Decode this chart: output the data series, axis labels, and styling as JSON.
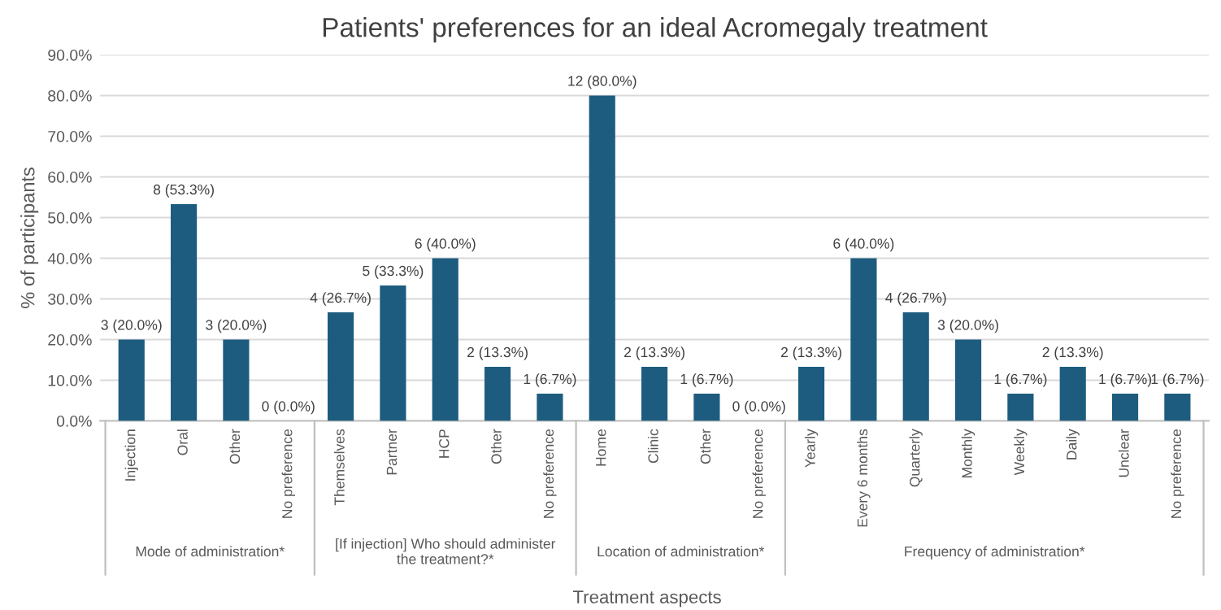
{
  "chart_data": {
    "type": "bar",
    "title": "Patients' preferences for an ideal Acromegaly treatment",
    "xlabel": "Treatment aspects",
    "ylabel": "% of participants",
    "categories": [
      "Injection",
      "Oral",
      "Other",
      "No preference",
      "Themselves",
      "Partner",
      "HCP",
      "Other",
      "No preference",
      "Home",
      "Clinic",
      "Other",
      "No preference",
      "Yearly",
      "Every 6 months",
      "Quarterly",
      "Monthly",
      "Weekly",
      "Daily",
      "Unclear",
      "No preference"
    ],
    "values": [
      20.0,
      53.3,
      20.0,
      0.0,
      26.7,
      33.3,
      40.0,
      13.3,
      6.7,
      80.0,
      13.3,
      6.7,
      0.0,
      13.3,
      40.0,
      26.7,
      20.0,
      6.7,
      13.3,
      6.7,
      6.7
    ],
    "value_labels": [
      "3 (20.0%)",
      "8 (53.3%)",
      "3 (20.0%)",
      "0 (0.0%)",
      "4 (26.7%)",
      "5 (33.3%)",
      "6 (40.0%)",
      "2 (13.3%)",
      "1 (6.7%)",
      "12 (80.0%)",
      "2 (13.3%)",
      "1 (6.7%)",
      "0 (0.0%)",
      "2 (13.3%)",
      "6 (40.0%)",
      "4 (26.7%)",
      "3 (20.0%)",
      "1 (6.7%)",
      "2 (13.3%)",
      "1 (6.7%)",
      "1 (6.7%)"
    ],
    "color": "#1d5c7e",
    "ylim": [
      0,
      90
    ],
    "yticks": [
      {
        "value": 0,
        "label": "0.0%"
      },
      {
        "value": 10,
        "label": "10.0%"
      },
      {
        "value": 20,
        "label": "20.0%"
      },
      {
        "value": 30,
        "label": "30.0%"
      },
      {
        "value": 40,
        "label": "40.0%"
      },
      {
        "value": 50,
        "label": "50.0%"
      },
      {
        "value": 60,
        "label": "60.0%"
      },
      {
        "value": 70,
        "label": "70.0%"
      },
      {
        "value": 80,
        "label": "80.0%"
      },
      {
        "value": 90,
        "label": "90.0%"
      }
    ],
    "grid": "y",
    "annotations": [
      "Mode of administration*",
      "[If injection] Who should administer\nthe treatment?*",
      "Location of administration*",
      "Frequency of administration*"
    ]
  }
}
